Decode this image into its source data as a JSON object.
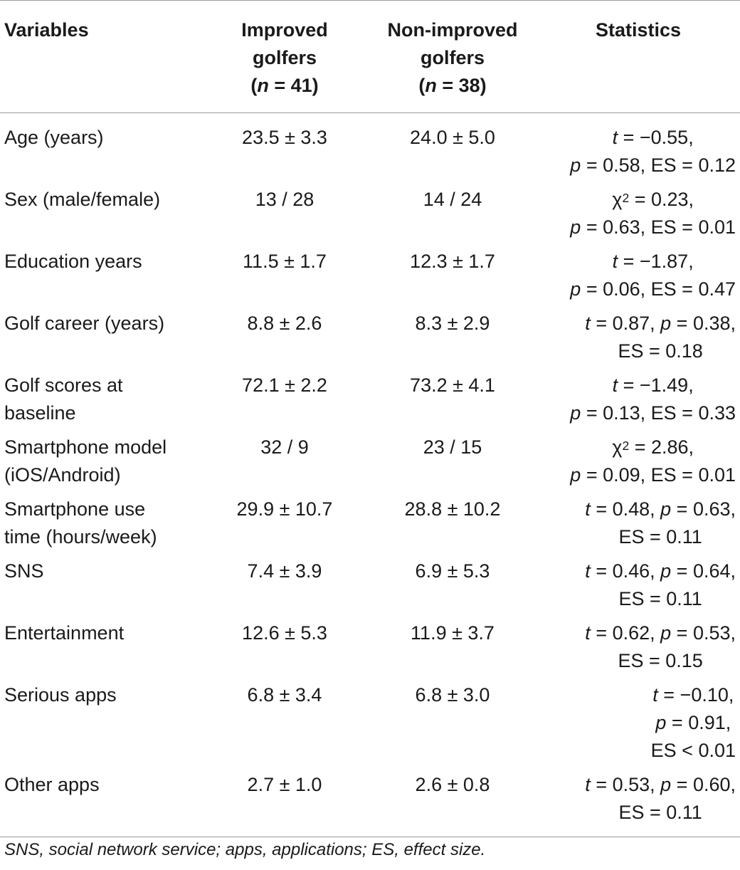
{
  "header": {
    "variables": "Variables",
    "improved": [
      "Improved",
      "golfers",
      "(n = 41)"
    ],
    "nonimproved": [
      "Non-improved",
      "golfers",
      "(n = 38)"
    ],
    "statistics": "Statistics"
  },
  "rows": [
    {
      "variable": [
        "Age (years)"
      ],
      "improved": "23.5 ± 3.3",
      "nonimproved": "24.0 ± 5.0",
      "statistics": [
        "t = −0.55,",
        "p = 0.58, ES = 0.12"
      ]
    },
    {
      "variable": [
        "Sex (male/female)"
      ],
      "improved": "13 / 28",
      "nonimproved": "14 / 24",
      "statistics": [
        "χ2 = 0.23,",
        "p = 0.63, ES = 0.01"
      ]
    },
    {
      "variable": [
        "Education years"
      ],
      "improved": "11.5 ± 1.7",
      "nonimproved": "12.3 ± 1.7",
      "statistics": [
        "t = −1.87,",
        "p = 0.06, ES = 0.47"
      ]
    },
    {
      "variable": [
        "Golf career (years)"
      ],
      "improved": "8.8 ± 2.6",
      "nonimproved": "8.3 ± 2.9",
      "statistics": [
        "t = 0.87, p = 0.38,",
        "ES = 0.18"
      ]
    },
    {
      "variable": [
        "Golf scores at",
        "baseline"
      ],
      "improved": "72.1 ± 2.2",
      "nonimproved": "73.2 ± 4.1",
      "statistics": [
        "t = −1.49,",
        "p = 0.13, ES = 0.33"
      ]
    },
    {
      "variable": [
        "Smartphone model",
        "(iOS/Android)"
      ],
      "improved": "32 / 9",
      "nonimproved": "23 / 15",
      "statistics": [
        "χ2 = 2.86,",
        "p = 0.09, ES = 0.01"
      ]
    },
    {
      "variable": [
        "Smartphone use",
        "time (hours/week)"
      ],
      "improved": "29.9 ± 10.7",
      "nonimproved": "28.8 ± 10.2",
      "statistics": [
        "t = 0.48, p = 0.63,",
        "ES = 0.11"
      ]
    },
    {
      "variable": [
        "SNS"
      ],
      "improved": "7.4 ± 3.9",
      "nonimproved": "6.9 ± 5.3",
      "statistics": [
        "t = 0.46, p = 0.64,",
        "ES = 0.11"
      ]
    },
    {
      "variable": [
        "Entertainment"
      ],
      "improved": "12.6 ± 5.3",
      "nonimproved": "11.9 ± 3.7",
      "statistics": [
        "t = 0.62, p = 0.53,",
        "ES = 0.15"
      ]
    },
    {
      "variable": [
        "Serious apps"
      ],
      "improved": "6.8 ± 3.4",
      "nonimproved": "6.8 ± 3.0",
      "statistics": [
        "t = −0.10,",
        "p = 0.91,",
        "ES < 0.01"
      ]
    },
    {
      "variable": [
        "Other apps"
      ],
      "improved": "2.7 ± 1.0",
      "nonimproved": "2.6 ± 0.8",
      "statistics": [
        "t = 0.53, p = 0.60,",
        "ES = 0.11"
      ]
    }
  ],
  "footnote": "SNS, social network service; apps, applications; ES, effect size."
}
